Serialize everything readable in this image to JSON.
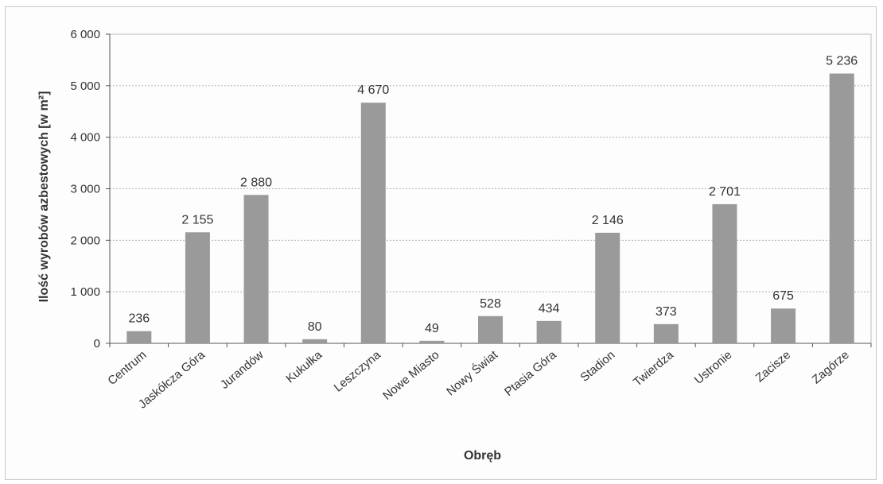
{
  "chart_data": {
    "type": "bar",
    "title": "",
    "xlabel": "Obręb",
    "ylabel": "Ilość wyrobów azbestowych [w m²]",
    "ylim": [
      0,
      6000
    ],
    "yticks": [
      0,
      1000,
      2000,
      3000,
      4000,
      5000,
      6000
    ],
    "ytick_labels": [
      "0",
      "1 000",
      "2 000",
      "3 000",
      "4 000",
      "5 000",
      "6 000"
    ],
    "grid": true,
    "bar_color": "#9a9a9a",
    "categories": [
      "Centrum",
      "Jaskółcza Góra",
      "Jurandów",
      "Kukułka",
      "Leszczyna",
      "Nowe Miasto",
      "Nowy Świat",
      "Ptasia Góra",
      "Stadion",
      "Twierdza",
      "Ustronie",
      "Zacisze",
      "Zagórze"
    ],
    "values": [
      236,
      2155,
      2880,
      80,
      4670,
      49,
      528,
      434,
      2146,
      373,
      2701,
      675,
      5236
    ],
    "data_labels": [
      "236",
      "2 155",
      "2 880",
      "80",
      "4 670",
      "49",
      "528",
      "434",
      "2 146",
      "373",
      "2 701",
      "675",
      "5 236"
    ]
  }
}
